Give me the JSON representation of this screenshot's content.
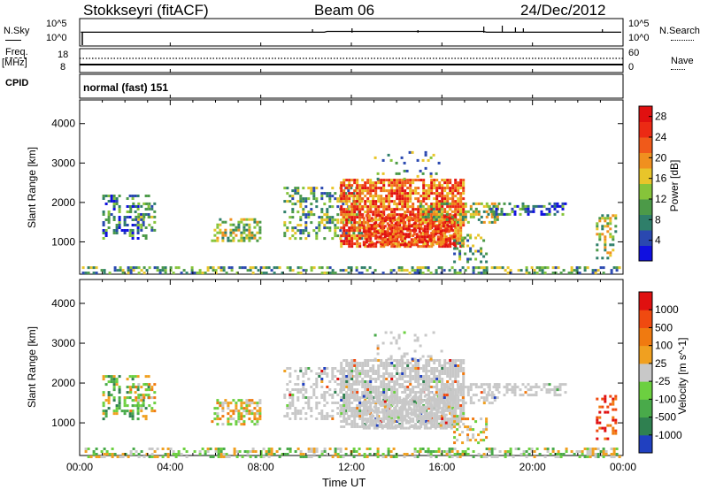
{
  "header": {
    "station": "Stokkseyri (fitACF)",
    "beam": "Beam 06",
    "date": "24/Dec/2012"
  },
  "strip": {
    "nsky_label": "N.Sky",
    "nsky_top": "10^5",
    "nsky_bottom": "10^0",
    "nsearch_label": "N.Search",
    "nsearch_top": "10^5",
    "nsearch_bottom": "10^0",
    "freq_label": "Freq.",
    "freq_unit": "[MHz]",
    "freq_top": "18",
    "freq_bottom": "8",
    "nave_label": "Nave",
    "nave_top": "60",
    "nave_bottom": "0",
    "cpid_label": "CPID",
    "cpid_value": "normal (fast) 151"
  },
  "chart_data": [
    {
      "type": "heatmap",
      "name": "power",
      "ylabel": "Slant Range [km]",
      "yticks": [
        1000,
        2000,
        3000,
        4000
      ],
      "ylim": [
        180,
        4600
      ],
      "xticks": [
        "00:00",
        "04:00",
        "08:00",
        "12:00",
        "16:00",
        "20:00",
        "00:00"
      ],
      "xlim_hours": [
        0,
        24
      ],
      "colorbar": {
        "label": "Power [dB]",
        "ticks": [
          "4",
          "8",
          "12",
          "16",
          "20",
          "24",
          "28"
        ],
        "range": [
          0,
          30
        ],
        "colors": [
          "#1010e0",
          "#2a48b0",
          "#2f7f6a",
          "#4c9a48",
          "#86c43a",
          "#e8c52a",
          "#f0901f",
          "#f05a1a",
          "#ec2a14",
          "#e01010"
        ]
      }
    },
    {
      "type": "heatmap",
      "name": "velocity",
      "ylabel": "Slant Range [km]",
      "yticks": [
        1000,
        2000,
        3000,
        4000
      ],
      "ylim": [
        180,
        4600
      ],
      "xticks": [
        "00:00",
        "04:00",
        "08:00",
        "12:00",
        "16:00",
        "20:00",
        "00:00"
      ],
      "xlabel": "Time UT",
      "xlim_hours": [
        0,
        24
      ],
      "colorbar": {
        "label": "Velocity [m s^-1]",
        "ticks": [
          "1000",
          "500",
          "100",
          "25",
          "-25",
          "-100",
          "-500",
          "-1000"
        ],
        "colors": [
          "#2040c0",
          "#2f8050",
          "#49aa4a",
          "#6cd040",
          "#c8c8c8",
          "#f0a020",
          "#f07a10",
          "#f04a10",
          "#e01010"
        ]
      }
    }
  ]
}
